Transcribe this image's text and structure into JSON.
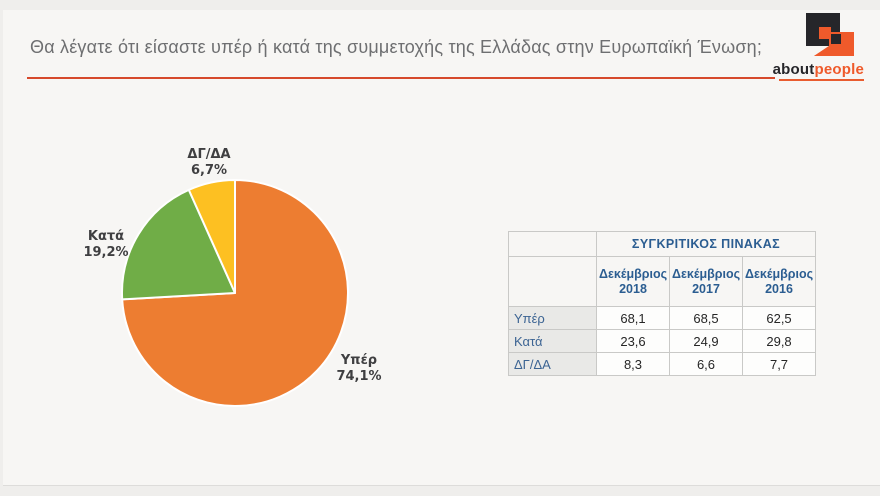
{
  "header": {
    "title": "Θα λέγατε ότι είσαστε υπέρ ή κατά της συμμετοχής της Ελλάδας στην Ευρωπαϊκή Ένωση;",
    "rule_color": "#d6492b",
    "logo": {
      "text_black": "about",
      "text_orange": "people",
      "mark_dark_color": "#26262a",
      "mark_orange_color": "#ef5a2b"
    }
  },
  "chart_data": {
    "type": "pie",
    "title": "",
    "start_angle_deg": 0,
    "direction": "clockwise",
    "labels_outside": true,
    "slices": [
      {
        "label": "Υπέρ",
        "value": 74.1,
        "display": "74,1%",
        "color": "#ed7d31"
      },
      {
        "label": "Κατά",
        "value": 19.2,
        "display": "19,2%",
        "color": "#70ad47"
      },
      {
        "label": "ΔΓ/ΔΑ",
        "value": 6.7,
        "display": "6,7%",
        "color": "#fdc022"
      }
    ]
  },
  "table": {
    "title": "ΣΥΓΚΡΙΤΙΚΟΣ ΠΙΝΑΚΑΣ",
    "columns": [
      "Δεκέμβριος 2018",
      "Δεκέμβριος 2017",
      "Δεκέμβριος 2016"
    ],
    "rows": [
      {
        "label": "Υπέρ",
        "values": [
          "68,1",
          "68,5",
          "62,5"
        ]
      },
      {
        "label": "Κατά",
        "values": [
          "23,6",
          "24,9",
          "29,8"
        ]
      },
      {
        "label": "ΔΓ/ΔΑ",
        "values": [
          "8,3",
          "6,6",
          "7,7"
        ]
      }
    ]
  }
}
